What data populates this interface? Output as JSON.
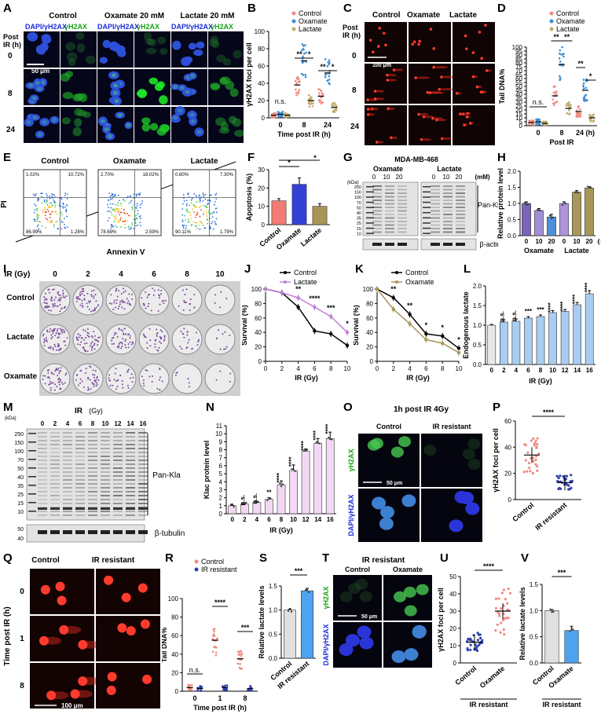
{
  "labels": [
    "A",
    "B",
    "C",
    "D",
    "E",
    "F",
    "G",
    "H",
    "I",
    "J",
    "K",
    "L",
    "M",
    "N",
    "O",
    "P",
    "Q",
    "R",
    "S",
    "T",
    "U",
    "V"
  ],
  "panelA": {
    "groups": [
      "Control",
      "Oxamate 20 mM",
      "Lactate 20 mM"
    ],
    "channel_merge": "DAPI/γH2AX",
    "channel_single": "γH2AX",
    "row_title": "Post IR (h)",
    "rows": [
      "0",
      "8",
      "24"
    ],
    "scale": "50 μm"
  },
  "panelC": {
    "groups": [
      "Control",
      "Oxamate",
      "Lactate"
    ],
    "row_title": "Post IR (h)",
    "rows": [
      "0",
      "8",
      "24"
    ],
    "scale": "100 μm"
  },
  "panelE": {
    "groups": [
      "Control",
      "Oxamate",
      "Lactate"
    ],
    "xlabel": "Annexin V",
    "ylabel": "PI",
    "quadrants": [
      {
        "ul": "1.02%",
        "ur": "10.72%",
        "ll": "86.99%",
        "lr": "1.28%"
      },
      {
        "ul": "2.70%",
        "ur": "18.02%",
        "ll": "78.69%",
        "lr": "2.59%"
      },
      {
        "ul": "0.80%",
        "ur": "7.30%",
        "ll": "90.11%",
        "lr": "1.79%"
      }
    ]
  },
  "panelG": {
    "title": "MDA-MB-468",
    "groups": [
      "Oxamate",
      "Lactate"
    ],
    "doses": [
      "0",
      "10",
      "20"
    ],
    "unit": "(mM)",
    "kda": "(kDa)",
    "markers": [
      "250",
      "150",
      "100",
      "70",
      "50",
      "40",
      "35",
      "25",
      "15",
      "10"
    ],
    "band1": "Pan-Kla",
    "band2": "β-actin"
  },
  "panelI": {
    "xhead": "IR (Gy)",
    "doses": [
      "0",
      "2",
      "4",
      "6",
      "8",
      "10"
    ],
    "rows": [
      "Control",
      "Lactate",
      "Oxamate"
    ]
  },
  "panelM": {
    "xhead": "IR",
    "unit": "(Gy)",
    "doses": [
      "0",
      "2",
      "4",
      "6",
      "8",
      "10",
      "12",
      "14",
      "16"
    ],
    "markers": [
      "250",
      "150",
      "100",
      "70",
      "50",
      "40",
      "35",
      "25",
      "15",
      "10"
    ],
    "markers2": [
      "50",
      "40"
    ],
    "band1": "Pan-Kla",
    "band2": "β-tubulin",
    "kda": "(kDa)"
  },
  "panelO": {
    "title": "1h post IR 4Gy",
    "groups": [
      "Control",
      "IR resistant"
    ],
    "rows": [
      "γH2AX",
      "DAPI/γH2AX"
    ],
    "scale": "50 μm"
  },
  "panelQ": {
    "groups": [
      "Control",
      "IR resistant"
    ],
    "rows": [
      "0",
      "1",
      "8"
    ],
    "ytitle": "Time post IR (h)",
    "scale": "100 μm"
  },
  "panelT": {
    "title": "IR resistant",
    "groups": [
      "Control",
      "Oxamate"
    ],
    "rows": [
      "γH2AX",
      "DAPI/γH2AX"
    ],
    "scale": "50 μm"
  },
  "chart_data": [
    {
      "id": "B",
      "type": "scatter",
      "ylabel": "γH2AX foci per cell",
      "xlabel": "Time post IR (h)",
      "categories": [
        "0",
        "8",
        "24"
      ],
      "ylim": [
        0,
        100
      ],
      "yticks": [
        "0",
        "20",
        "40",
        "60",
        "80",
        "100"
      ],
      "series": [
        {
          "name": "Control",
          "color": "#f08a80",
          "means": [
            3,
            38,
            25
          ]
        },
        {
          "name": "Oxamate",
          "color": "#3a8fd8",
          "means": [
            4,
            66,
            52
          ]
        },
        {
          "name": "Lactate",
          "color": "#c2ad6e",
          "means": [
            3,
            20,
            12
          ]
        }
      ],
      "annotations": [
        "n.s.",
        "**",
        "*",
        "**",
        "*"
      ]
    },
    {
      "id": "D",
      "type": "scatter",
      "ylabel": "Tail DNA%",
      "xlabel": "Post IR",
      "categories": [
        "0",
        "8",
        "24 (h)"
      ],
      "ylim": [
        0,
        100
      ],
      "yticks": [
        "0",
        "5",
        "10",
        "15",
        "20",
        "25",
        "30",
        "35",
        "40",
        "45",
        "50",
        "55",
        "60",
        "65",
        "70",
        "75",
        "80",
        "85",
        "90",
        "95",
        "100"
      ],
      "series": [
        {
          "name": "Control",
          "color": "#f08a80",
          "means": [
            4,
            38,
            18
          ]
        },
        {
          "name": "Oxamate",
          "color": "#3a8fd8",
          "means": [
            5,
            78,
            45
          ]
        },
        {
          "name": "Lactate",
          "color": "#c2ad6e",
          "means": [
            3,
            22,
            10
          ]
        }
      ],
      "annotations": [
        "n.s.",
        "**",
        "**",
        "**",
        "*"
      ]
    },
    {
      "id": "F",
      "type": "bar",
      "ylabel": "Apoptosis (%)",
      "categories": [
        "Control",
        "Oxamate",
        "Lactate"
      ],
      "values": [
        13,
        22,
        10
      ],
      "errors": [
        1.2,
        3.5,
        1.5
      ],
      "colors": [
        "#f07c74",
        "#3341d6",
        "#a89556"
      ],
      "ylim": [
        0,
        30
      ],
      "yticks": [
        "0",
        "10",
        "20",
        "30"
      ],
      "annotations": [
        "*",
        "*"
      ]
    },
    {
      "id": "H",
      "type": "bar",
      "ylabel": "Relative protein level",
      "categories": [
        "0",
        "10",
        "20",
        "0",
        "10",
        "20"
      ],
      "groups": [
        "Oxamate",
        "Lactate"
      ],
      "unit": "(mM)",
      "values": [
        1.0,
        0.78,
        0.58,
        1.0,
        1.35,
        1.48
      ],
      "errors": [
        0.05,
        0.06,
        0.08,
        0.05,
        0.05,
        0.04
      ],
      "colors": [
        "#7a63b8",
        "#a18fd6",
        "#4d8fd8",
        "#b094d8",
        "#a8965a",
        "#a8965a"
      ],
      "ylim": [
        0,
        2.0
      ],
      "yticks": [
        "0.0",
        "0.5",
        "1.0",
        "1.5",
        "2.0"
      ]
    },
    {
      "id": "J",
      "type": "line",
      "ylabel": "Survival (%)",
      "xlabel": "IR (Gy)",
      "x": [
        0,
        2,
        4,
        6,
        8,
        10
      ],
      "xticks": [
        "0",
        "2",
        "4",
        "6",
        "8",
        "10"
      ],
      "ylim": [
        0,
        100
      ],
      "yticks": [
        "0",
        "20",
        "40",
        "60",
        "80",
        "100"
      ],
      "series": [
        {
          "name": "Control",
          "color": "#000000",
          "values": [
            100,
            95,
            75,
            42,
            38,
            22
          ]
        },
        {
          "name": "Lactate",
          "color": "#c07fd6",
          "values": [
            100,
            95,
            88,
            75,
            62,
            40
          ]
        }
      ],
      "annotations": [
        "**",
        "****",
        "***",
        "*"
      ]
    },
    {
      "id": "K",
      "type": "line",
      "ylabel": "Survival (%)",
      "xlabel": "IR (Gy)",
      "x": [
        0,
        2,
        4,
        6,
        8,
        10
      ],
      "xticks": [
        "0",
        "2",
        "4",
        "6",
        "8",
        "10"
      ],
      "ylim": [
        0,
        100
      ],
      "yticks": [
        "0",
        "20",
        "40",
        "60",
        "80",
        "100"
      ],
      "series": [
        {
          "name": "Control",
          "color": "#000000",
          "values": [
            100,
            88,
            65,
            38,
            35,
            18
          ]
        },
        {
          "name": "Oxamate",
          "color": "#a8965a",
          "values": [
            100,
            72,
            52,
            30,
            25,
            12
          ]
        }
      ],
      "annotations": [
        "**",
        "**",
        "*",
        "*",
        "*"
      ]
    },
    {
      "id": "L",
      "type": "bar",
      "ylabel": "Endogenous lactate",
      "xlabel": "IR (Gy)",
      "categories": [
        "0",
        "2",
        "4",
        "6",
        "8",
        "10",
        "12",
        "14",
        "16"
      ],
      "values": [
        1.0,
        1.08,
        1.1,
        1.18,
        1.22,
        1.32,
        1.35,
        1.52,
        1.8
      ],
      "errors": [
        0.02,
        0.06,
        0.06,
        0.04,
        0.04,
        0.05,
        0.05,
        0.06,
        0.08
      ],
      "colors": [
        "#e8e8e8",
        "#a8cdf0",
        "#a8cdf0",
        "#a8cdf0",
        "#a8cdf0",
        "#a8cdf0",
        "#a8cdf0",
        "#a8cdf0",
        "#a8cdf0"
      ],
      "ylim": [
        0,
        2.0
      ],
      "yticks": [
        "0.0",
        "0.5",
        "1.0",
        "1.5",
        "2.0"
      ],
      "annotations": [
        "n.s.",
        "n.s.",
        "n.s.",
        "***",
        "***",
        "****",
        "****",
        "****",
        "****"
      ]
    },
    {
      "id": "N",
      "type": "bar",
      "ylabel": "Klac protein level",
      "xlabel": "IR (Gy)",
      "categories": [
        "0",
        "2",
        "4",
        "6",
        "8",
        "10",
        "12",
        "14",
        "16"
      ],
      "values": [
        1.0,
        1.2,
        1.4,
        1.8,
        3.6,
        5.4,
        7.8,
        8.8,
        9.4
      ],
      "errors": [
        0.05,
        0.1,
        0.1,
        0.2,
        0.5,
        0.7,
        0.3,
        0.6,
        0.8
      ],
      "colors": [
        "#f3d8f3",
        "#f3d8f3",
        "#f3d8f3",
        "#f3d8f3",
        "#f3d8f3",
        "#f3d8f3",
        "#f3d8f3",
        "#f3d8f3",
        "#f3d8f3"
      ],
      "ylim": [
        0,
        11
      ],
      "yticks": [
        "0",
        "1",
        "2",
        "3",
        "4",
        "5",
        "6",
        "7",
        "8",
        "9",
        "10",
        "11"
      ],
      "annotations": [
        "n.s.",
        "n.s.",
        "**",
        "****",
        "****",
        "****",
        "****",
        "****"
      ]
    },
    {
      "id": "P",
      "type": "scatter",
      "ylabel": "γH2AX foci per cell",
      "categories": [
        "Control",
        "IR resistant"
      ],
      "means": [
        34,
        13
      ],
      "colors": [
        "#f08a80",
        "#2e3fb0"
      ],
      "ylim": [
        0,
        60
      ],
      "yticks": [
        "0",
        "20",
        "40",
        "60"
      ],
      "annotations": [
        "****"
      ]
    },
    {
      "id": "R",
      "type": "scatter",
      "ylabel": "Tail DNA%",
      "xlabel": "Time post IR (h)",
      "categories": [
        "0",
        "1",
        "8"
      ],
      "ylim": [
        0,
        100
      ],
      "yticks": [
        "0",
        "20",
        "40",
        "60",
        "80",
        "100"
      ],
      "series": [
        {
          "name": "Control",
          "color": "#f08a80",
          "means": [
            4,
            55,
            35
          ]
        },
        {
          "name": "IR resistant",
          "color": "#2e3fb0",
          "means": [
            3,
            4,
            3
          ]
        }
      ],
      "annotations": [
        "n.s.",
        "****",
        "***"
      ]
    },
    {
      "id": "S",
      "type": "bar",
      "ylabel": "Relative lactate levels",
      "categories": [
        "Control",
        "IR resistant"
      ],
      "values": [
        1.0,
        1.4
      ],
      "errors": [
        0.02,
        0.05
      ],
      "colors": [
        "#e0e0e0",
        "#4da3ef"
      ],
      "ylim": [
        0,
        1.5
      ],
      "yticks": [
        "0.0",
        "0.5",
        "1.0",
        "1.5"
      ],
      "annotations": [
        "***"
      ]
    },
    {
      "id": "U",
      "type": "scatter",
      "ylabel": "γH2AX foci per cell",
      "categories": [
        "Control",
        "Oxamate"
      ],
      "group": "IR resistant",
      "means": [
        12,
        30
      ],
      "colors": [
        "#2e3fb0",
        "#f08a80"
      ],
      "ylim": [
        0,
        50
      ],
      "yticks": [
        "0",
        "10",
        "20",
        "30",
        "40",
        "50"
      ],
      "annotations": [
        "****"
      ]
    },
    {
      "id": "V",
      "type": "bar",
      "ylabel": "Relative lactate levels",
      "categories": [
        "Control",
        "Oxamate"
      ],
      "group": "IR resistant",
      "values": [
        1.0,
        0.62
      ],
      "errors": [
        0.02,
        0.08
      ],
      "colors": [
        "#e0e0e0",
        "#4da3ef"
      ],
      "ylim": [
        0,
        1.5
      ],
      "yticks": [
        "0.0",
        "0.5",
        "1.0",
        "1.5"
      ],
      "annotations": [
        "***"
      ]
    }
  ]
}
